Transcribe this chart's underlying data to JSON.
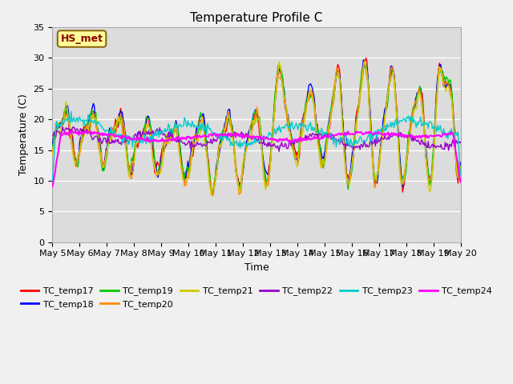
{
  "title": "Temperature Profile C",
  "xlabel": "Time",
  "ylabel": "Temperature (C)",
  "ylim": [
    0,
    35
  ],
  "annotation": "HS_met",
  "annotation_color": "#8B0000",
  "annotation_bg": "#FFFF99",
  "annotation_border": "#8B6914",
  "colors": {
    "TC_temp17": "#FF0000",
    "TC_temp18": "#0000FF",
    "TC_temp19": "#00CC00",
    "TC_temp20": "#FF8C00",
    "TC_temp21": "#CCCC00",
    "TC_temp22": "#9900CC",
    "TC_temp23": "#00CCCC",
    "TC_temp24": "#FF00FF"
  },
  "bg_color": "#DCDCDC",
  "figure_bg": "#F0F0F0",
  "n_points": 480,
  "yticks": [
    0,
    5,
    10,
    15,
    20,
    25,
    30,
    35
  ]
}
